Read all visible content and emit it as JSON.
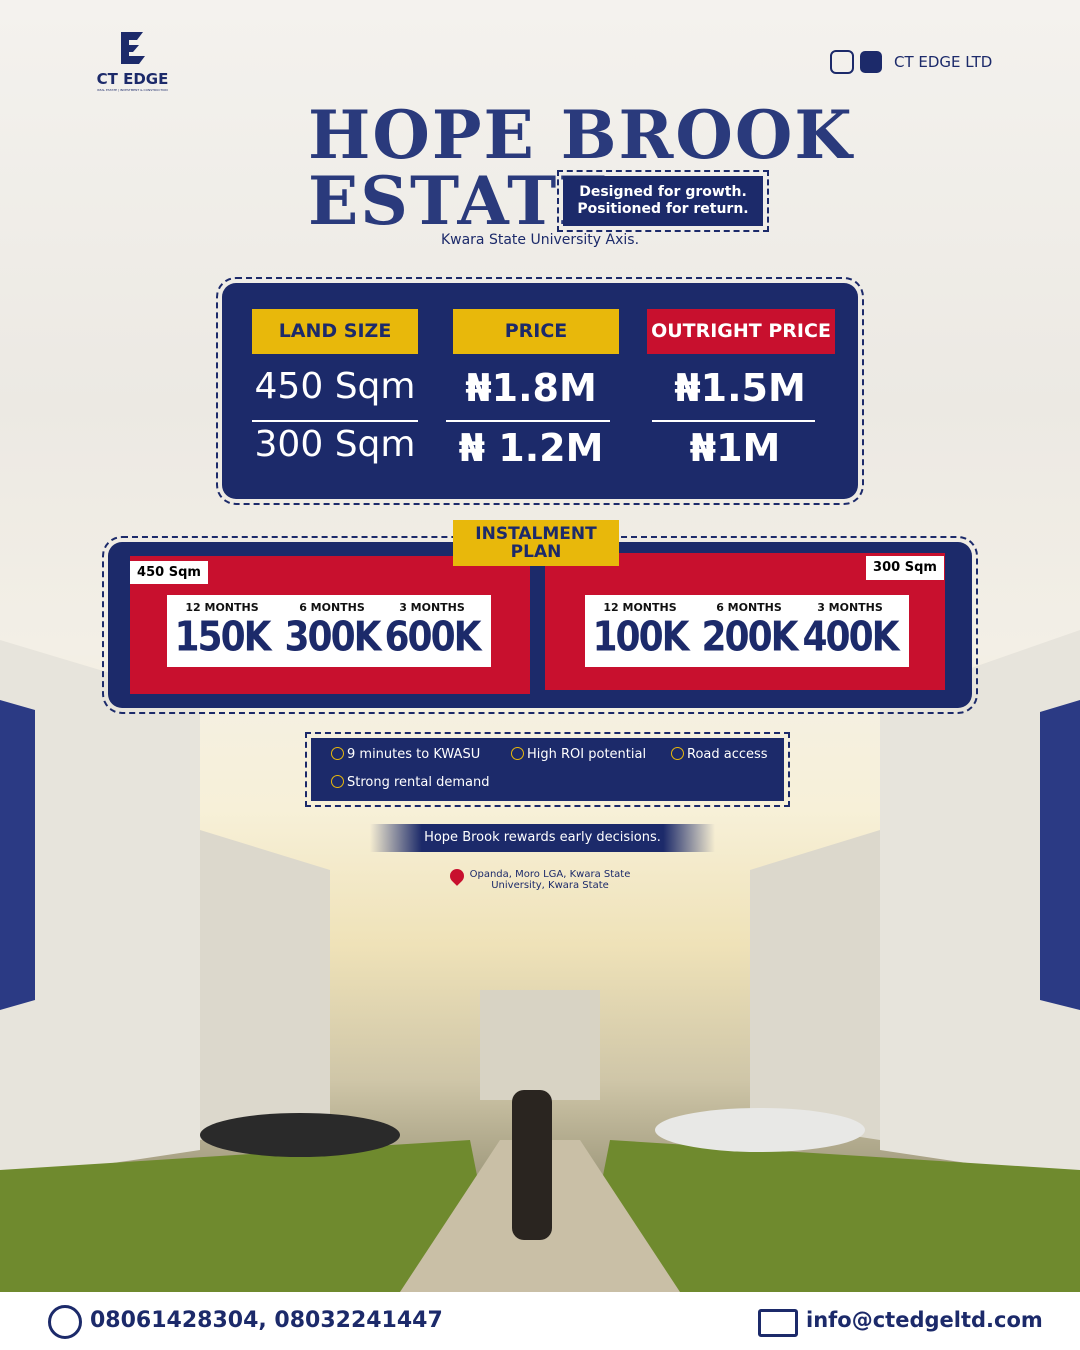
{
  "brand": {
    "logo_text": "CT EDGE",
    "logo_subtext": "REAL ESTATE | INVESTMENT & CONSTRUCTION"
  },
  "social": {
    "handle": "CT EDGE LTD"
  },
  "title": {
    "line1": "HOPE BROOK",
    "line2": "ESTATE"
  },
  "tagline": {
    "line1": "Designed for growth.",
    "line2": "Positioned for return."
  },
  "axis": "Kwara State University Axis.",
  "pricing": {
    "headers": [
      "LAND SIZE",
      "PRICE",
      "OUTRIGHT PRICE"
    ],
    "rows": [
      [
        "450 Sqm",
        "₦1.8M",
        "₦1.5M"
      ],
      [
        "300 Sqm",
        "₦ 1.2M",
        "₦1M"
      ]
    ]
  },
  "instalment": {
    "title": [
      "INSTALMENT",
      "PLAN"
    ],
    "plans": [
      {
        "size": "450 Sqm",
        "options": [
          {
            "period": "12 MONTHS",
            "amount": "150K"
          },
          {
            "period": "6 MONTHS",
            "amount": "300K"
          },
          {
            "period": "3 MONTHS",
            "amount": "600K"
          }
        ]
      },
      {
        "size": "300 Sqm",
        "options": [
          {
            "period": "12 MONTHS",
            "amount": "100K"
          },
          {
            "period": "6 MONTHS",
            "amount": "200K"
          },
          {
            "period": "3 MONTHS",
            "amount": "400K"
          }
        ]
      }
    ]
  },
  "features": [
    "9 minutes to KWASU",
    "High ROI potential",
    "Road access",
    "Strong rental demand"
  ],
  "slogan": "Hope Brook rewards early decisions.",
  "location": {
    "line1": "Opanda, Moro LGA, Kwara State",
    "line2": "University, Kwara State"
  },
  "contact": {
    "phones": "08061428304, 08032241447",
    "email": "info@ctedgeltd.com"
  }
}
